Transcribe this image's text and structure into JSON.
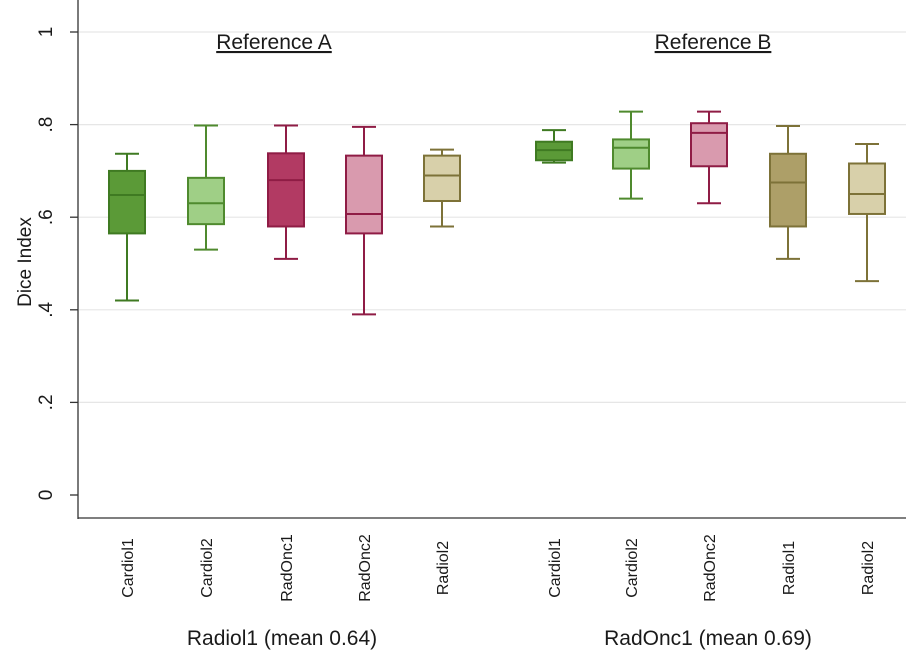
{
  "chart_data": {
    "type": "box",
    "ylabel": "Dice Index",
    "ylim": [
      0,
      1
    ],
    "yticks": [
      {
        "value": 0,
        "label": "0"
      },
      {
        "value": 0.2,
        "label": ".2"
      },
      {
        "value": 0.4,
        "label": ".4"
      },
      {
        "value": 0.6,
        "label": ".6"
      },
      {
        "value": 0.8,
        "label": ".8"
      },
      {
        "value": 1,
        "label": "1"
      }
    ],
    "grid": true,
    "colors": {
      "Cardiol1": {
        "fill": "#5b9a37",
        "stroke": "#3f7a22"
      },
      "Cardiol2": {
        "fill": "#9fcf86",
        "stroke": "#4f8a2e"
      },
      "RadOnc1": {
        "fill": "#b23a63",
        "stroke": "#8f1c45"
      },
      "RadOnc2": {
        "fill": "#d99aae",
        "stroke": "#8f1c45"
      },
      "Radiol1": {
        "fill": "#ad9f68",
        "stroke": "#7d7238"
      },
      "Radiol2": {
        "fill": "#d8d0aa",
        "stroke": "#7d7238"
      }
    },
    "groups": [
      {
        "title": "Reference A",
        "label": "Radiol1 (mean 0.64)",
        "boxes": [
          {
            "category": "Cardiol1",
            "min": 0.42,
            "q1": 0.565,
            "median": 0.648,
            "q3": 0.7,
            "max": 0.737
          },
          {
            "category": "Cardiol2",
            "min": 0.53,
            "q1": 0.585,
            "median": 0.63,
            "q3": 0.685,
            "max": 0.798
          },
          {
            "category": "RadOnc1",
            "min": 0.51,
            "q1": 0.58,
            "median": 0.68,
            "q3": 0.738,
            "max": 0.798
          },
          {
            "category": "RadOnc2",
            "min": 0.39,
            "q1": 0.565,
            "median": 0.607,
            "q3": 0.733,
            "max": 0.795
          },
          {
            "category": "Radiol2",
            "min": 0.58,
            "q1": 0.635,
            "median": 0.69,
            "q3": 0.733,
            "max": 0.746
          }
        ]
      },
      {
        "title": "Reference B",
        "label": "RadOnc1 (mean 0.69)",
        "boxes": [
          {
            "category": "Cardiol1",
            "min": 0.718,
            "q1": 0.723,
            "median": 0.745,
            "q3": 0.763,
            "max": 0.788
          },
          {
            "category": "Cardiol2",
            "min": 0.64,
            "q1": 0.705,
            "median": 0.75,
            "q3": 0.768,
            "max": 0.828
          },
          {
            "category": "RadOnc2",
            "min": 0.63,
            "q1": 0.71,
            "median": 0.782,
            "q3": 0.803,
            "max": 0.828
          },
          {
            "category": "Radiol1",
            "min": 0.51,
            "q1": 0.58,
            "median": 0.675,
            "q3": 0.737,
            "max": 0.797
          },
          {
            "category": "Radiol2",
            "min": 0.462,
            "q1": 0.607,
            "median": 0.65,
            "q3": 0.716,
            "max": 0.758
          }
        ]
      }
    ]
  }
}
